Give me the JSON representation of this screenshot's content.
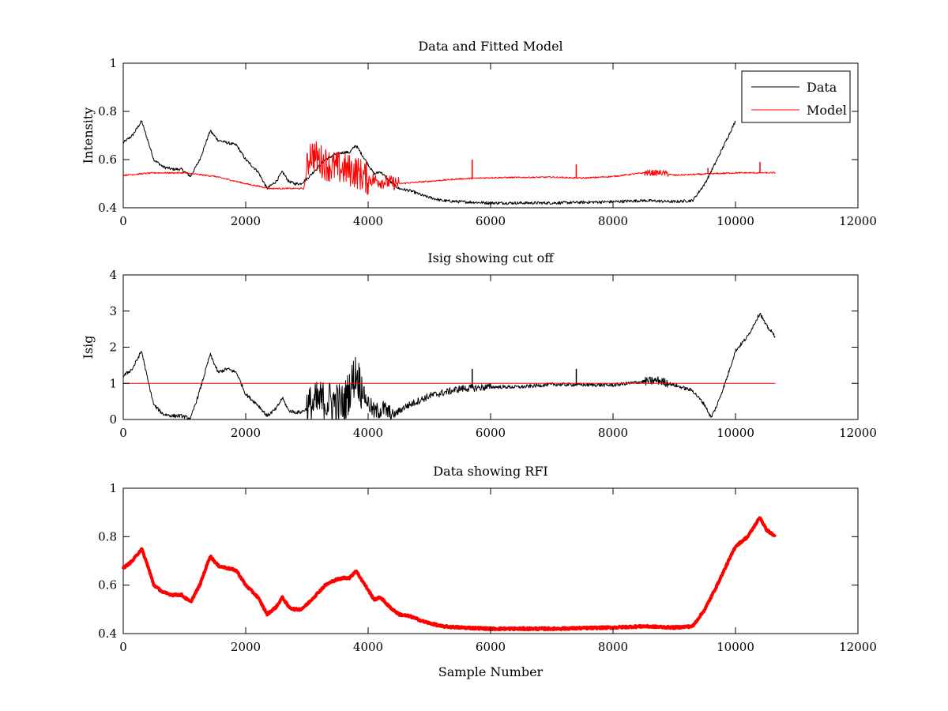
{
  "chart_data": [
    {
      "type": "line",
      "title": "Data and Fitted Model",
      "xlabel": "",
      "ylabel": "Intensity",
      "xlim": [
        0,
        12000
      ],
      "ylim": [
        0.4,
        1
      ],
      "xticks": [
        0,
        2000,
        4000,
        6000,
        8000,
        10000,
        12000
      ],
      "yticks": [
        0.4,
        0.6,
        0.8,
        1
      ],
      "xtick_labels": [
        "0",
        "2000",
        "4000",
        "6000",
        "8000",
        "10000",
        "12000"
      ],
      "ytick_labels": [
        "0.4",
        "0.6",
        "0.8",
        "1"
      ],
      "legend": {
        "placement": "top-right"
      },
      "series": [
        {
          "name": "Data",
          "color": "#000000",
          "noise": 0.006,
          "x": [
            0,
            150,
            300,
            400,
            500,
            650,
            800,
            950,
            1100,
            1250,
            1420,
            1550,
            1700,
            1850,
            2000,
            2200,
            2350,
            2500,
            2600,
            2700,
            2800,
            2900,
            3000,
            3150,
            3300,
            3450,
            3600,
            3700,
            3800,
            3950,
            4100,
            4200,
            4350,
            4500,
            4700,
            4900,
            5200,
            5500,
            6000,
            7000,
            8000,
            8500,
            9000,
            9300,
            9500,
            9700,
            9850,
            10000
          ],
          "y": [
            0.67,
            0.7,
            0.76,
            0.68,
            0.6,
            0.57,
            0.56,
            0.56,
            0.53,
            0.6,
            0.72,
            0.68,
            0.67,
            0.66,
            0.6,
            0.55,
            0.48,
            0.51,
            0.55,
            0.51,
            0.5,
            0.5,
            0.52,
            0.56,
            0.6,
            0.62,
            0.63,
            0.63,
            0.66,
            0.6,
            0.54,
            0.55,
            0.51,
            0.48,
            0.47,
            0.45,
            0.43,
            0.425,
            0.42,
            0.42,
            0.425,
            0.43,
            0.425,
            0.43,
            0.5,
            0.6,
            0.68,
            0.76
          ]
        },
        {
          "name": "Model",
          "color": "#ff0000",
          "noise": 0.003,
          "bursts": [
            {
              "from": 3000,
              "to": 4000,
              "amp": 0.07
            },
            {
              "from": 4000,
              "to": 4500,
              "amp": 0.03
            },
            {
              "from": 8500,
              "to": 8900,
              "amp": 0.012
            }
          ],
          "spikes": [
            {
              "x": 5700,
              "y": 0.6
            },
            {
              "x": 7400,
              "y": 0.58
            },
            {
              "x": 9550,
              "y": 0.565
            },
            {
              "x": 10400,
              "y": 0.59
            }
          ],
          "x": [
            0,
            500,
            1000,
            1500,
            2000,
            2400,
            2800,
            2950,
            3050,
            3200,
            3400,
            3600,
            3800,
            4000,
            4200,
            4500,
            5000,
            5500,
            6000,
            7000,
            7500,
            8000,
            8500,
            8800,
            9000,
            9500,
            10000,
            10650
          ],
          "y": [
            0.535,
            0.545,
            0.545,
            0.53,
            0.5,
            0.48,
            0.48,
            0.48,
            0.63,
            0.6,
            0.57,
            0.56,
            0.55,
            0.52,
            0.51,
            0.5,
            0.51,
            0.52,
            0.525,
            0.527,
            0.523,
            0.53,
            0.545,
            0.545,
            0.535,
            0.54,
            0.545,
            0.545
          ]
        }
      ]
    },
    {
      "type": "line",
      "title": "Isig showing cut off",
      "xlabel": "",
      "ylabel": "Isig",
      "xlim": [
        0,
        12000
      ],
      "ylim": [
        0,
        4
      ],
      "xticks": [
        0,
        2000,
        4000,
        6000,
        8000,
        10000,
        12000
      ],
      "yticks": [
        0,
        1,
        2,
        3,
        4
      ],
      "xtick_labels": [
        "0",
        "2000",
        "4000",
        "6000",
        "8000",
        "10000",
        "12000"
      ],
      "ytick_labels": [
        "0",
        "1",
        "2",
        "3",
        "4"
      ],
      "series": [
        {
          "color": "#000000",
          "noise": 0.05,
          "bursts": [
            {
              "from": 3000,
              "to": 3900,
              "amp": 0.6
            },
            {
              "from": 3900,
              "to": 4400,
              "amp": 0.25
            },
            {
              "from": 4400,
              "to": 6000,
              "amp": 0.1
            },
            {
              "from": 8500,
              "to": 8900,
              "amp": 0.12
            }
          ],
          "spikes": [
            {
              "x": 5700,
              "y": 1.4
            },
            {
              "x": 7400,
              "y": 1.4
            }
          ],
          "x": [
            0,
            150,
            300,
            400,
            500,
            650,
            800,
            950,
            1100,
            1250,
            1420,
            1550,
            1700,
            1850,
            2000,
            2200,
            2350,
            2500,
            2600,
            2700,
            2800,
            2900,
            3000,
            3200,
            3400,
            3600,
            3800,
            3950,
            4100,
            4250,
            4400,
            4600,
            5000,
            5500,
            6000,
            6500,
            7000,
            8000,
            8500,
            8750,
            9000,
            9300,
            9500,
            9600,
            9700,
            9850,
            10000,
            10200,
            10400,
            10500,
            10650
          ],
          "y": [
            1.2,
            1.4,
            1.9,
            1.1,
            0.4,
            0.15,
            0.1,
            0.1,
            0.02,
            0.8,
            1.8,
            1.3,
            1.4,
            1.3,
            0.7,
            0.4,
            0.1,
            0.3,
            0.6,
            0.25,
            0.2,
            0.2,
            0.3,
            0.5,
            0.5,
            0.4,
            1.3,
            0.6,
            0.2,
            0.3,
            0.1,
            0.35,
            0.65,
            0.85,
            0.9,
            0.9,
            0.97,
            0.95,
            1.05,
            1.08,
            0.95,
            0.8,
            0.4,
            0.05,
            0.4,
            1.1,
            1.9,
            2.3,
            2.95,
            2.6,
            2.3
          ]
        },
        {
          "color": "#ff0000",
          "x": [
            0,
            10650
          ],
          "y": [
            1,
            1
          ]
        }
      ]
    },
    {
      "type": "line",
      "title": "Data showing RFI",
      "xlabel": "Sample Number",
      "ylabel": "",
      "xlim": [
        0,
        12000
      ],
      "ylim": [
        0.4,
        1
      ],
      "xticks": [
        0,
        2000,
        4000,
        6000,
        8000,
        10000,
        12000
      ],
      "yticks": [
        0.4,
        0.6,
        0.8,
        1
      ],
      "xtick_labels": [
        "0",
        "2000",
        "4000",
        "6000",
        "8000",
        "10000",
        "12000"
      ],
      "ytick_labels": [
        "0.4",
        "0.6",
        "0.8",
        "1"
      ],
      "series": [
        {
          "color": "#ff0000",
          "thick": true,
          "noise": 0.004,
          "x": [
            0,
            150,
            300,
            400,
            500,
            650,
            800,
            950,
            1100,
            1250,
            1420,
            1550,
            1700,
            1850,
            2000,
            2200,
            2350,
            2500,
            2600,
            2700,
            2800,
            2900,
            3000,
            3150,
            3300,
            3450,
            3600,
            3700,
            3800,
            3950,
            4100,
            4200,
            4350,
            4500,
            4700,
            4900,
            5200,
            5500,
            6000,
            7000,
            8000,
            8500,
            9000,
            9300,
            9500,
            9700,
            9850,
            10000,
            10200,
            10400,
            10500,
            10650
          ],
          "y": [
            0.67,
            0.7,
            0.75,
            0.68,
            0.6,
            0.57,
            0.56,
            0.56,
            0.53,
            0.6,
            0.72,
            0.68,
            0.67,
            0.66,
            0.6,
            0.55,
            0.48,
            0.51,
            0.55,
            0.51,
            0.5,
            0.5,
            0.52,
            0.56,
            0.6,
            0.62,
            0.63,
            0.63,
            0.66,
            0.6,
            0.54,
            0.55,
            0.51,
            0.48,
            0.47,
            0.45,
            0.43,
            0.425,
            0.42,
            0.42,
            0.425,
            0.43,
            0.425,
            0.43,
            0.5,
            0.6,
            0.68,
            0.76,
            0.8,
            0.88,
            0.83,
            0.8
          ]
        }
      ]
    }
  ]
}
